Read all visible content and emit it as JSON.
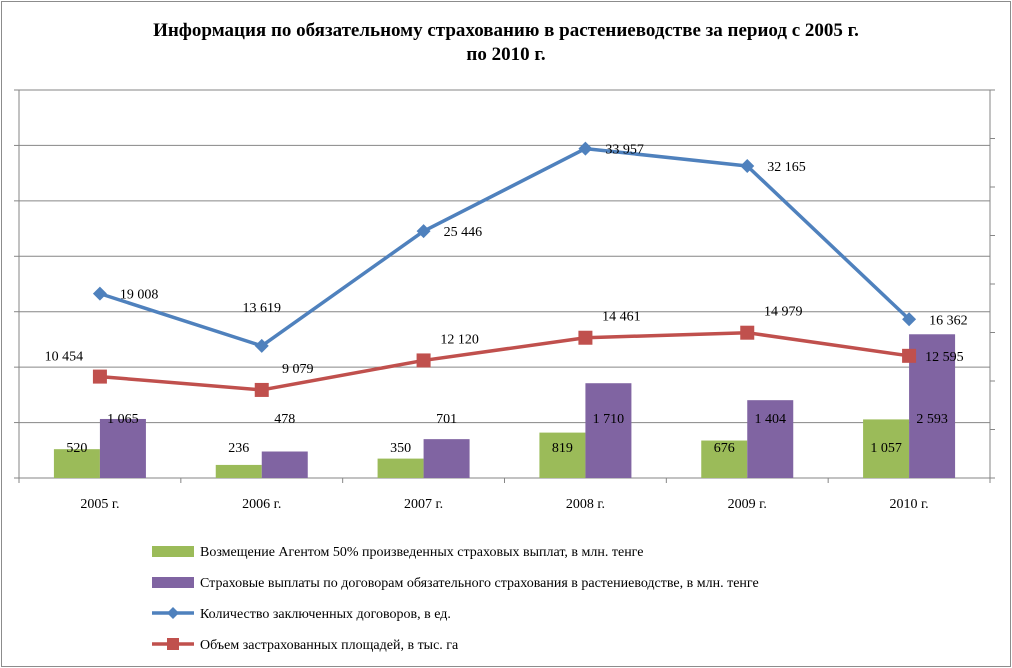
{
  "chart_data": {
    "type": "bar",
    "title_lines": [
      "Информация по обязательному страхованию в растениеводстве за период с 2005 г.",
      "по 2010 г."
    ],
    "categories": [
      "2005 г.",
      "2006 г.",
      "2007 г.",
      "2008 г.",
      "2009 г.",
      "2010 г."
    ],
    "left_axis_range": [
      0,
      7000
    ],
    "right_axis_range": [
      0,
      40000
    ],
    "grid": true,
    "legend_position": "bottom",
    "series": [
      {
        "name": "Возмещение Агентом 50% произведенных страховых выплат, в млн. тенге",
        "kind": "bar",
        "axis": "left",
        "color": "#9bbb59",
        "values": [
          520,
          236,
          350,
          819,
          676,
          1057
        ],
        "labels": [
          "520",
          "236",
          "350",
          "819",
          "676",
          "1 057"
        ]
      },
      {
        "name": "Страховые выплаты по договорам обязательного страхования в растениеводстве, в млн. тенге",
        "kind": "bar",
        "axis": "left",
        "color": "#8064a2",
        "values": [
          1065,
          478,
          701,
          1710,
          1404,
          2593
        ],
        "labels": [
          "1 065",
          "478",
          "701",
          "1 710",
          "1 404",
          "2 593"
        ]
      },
      {
        "name": "Количество заключенных договоров, в ед.",
        "kind": "line",
        "marker": "diamond",
        "axis": "right",
        "color": "#4f81bd",
        "values": [
          19008,
          13619,
          25446,
          33957,
          32165,
          16362
        ],
        "labels": [
          "19 008",
          "13 619",
          "25 446",
          "33 957",
          "32 165",
          "16 362"
        ]
      },
      {
        "name": "Объем застрахованных площадей, в тыс. га",
        "kind": "line",
        "marker": "square",
        "axis": "right",
        "color": "#c0504d",
        "values": [
          10454,
          9079,
          12120,
          14461,
          14979,
          12595
        ],
        "labels": [
          "10 454",
          "9 079",
          "12 120",
          "14 461",
          "14 979",
          "12 595"
        ]
      }
    ]
  }
}
